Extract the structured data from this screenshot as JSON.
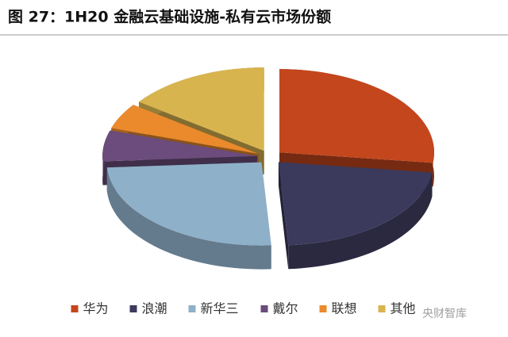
{
  "chart_data": {
    "type": "pie3d",
    "title": "图 27：1H20 金融云基础设施-私有云市场份额",
    "categories": [
      "华为",
      "浪潮",
      "新华三",
      "戴尔",
      "联想",
      "其他"
    ],
    "values": [
      27,
      22,
      25,
      6,
      5,
      15
    ],
    "colors": [
      "#c4461d",
      "#3c3a5c",
      "#8fb0c9",
      "#6b4c7c",
      "#ea8a2c",
      "#d8b44e"
    ],
    "watermark": "央财智库"
  }
}
